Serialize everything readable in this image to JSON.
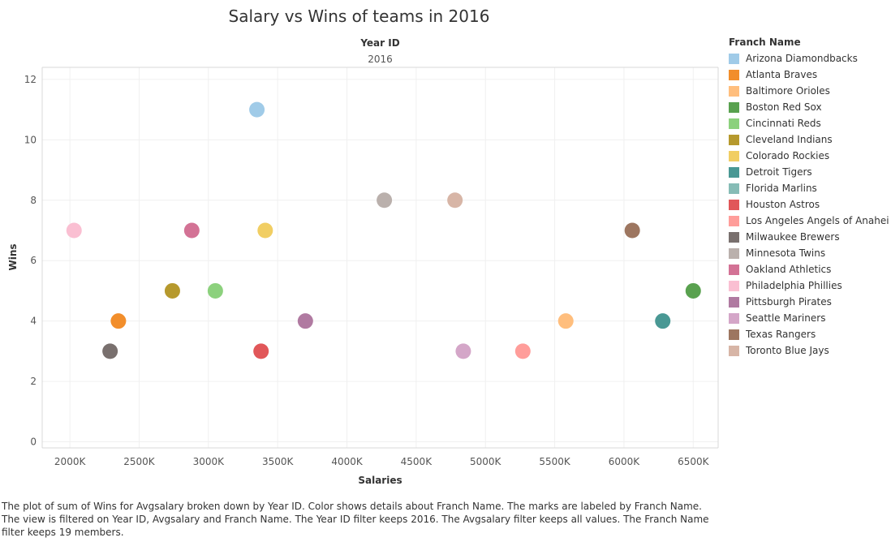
{
  "chart_data": {
    "type": "scatter",
    "title": "Salary vs Wins of teams in 2016",
    "header_field": "Year ID",
    "header_value": "2016",
    "xlabel": "Salaries",
    "ylabel": "Wins",
    "xlim": [
      1800,
      6680
    ],
    "ylim": [
      -0.2,
      12.4
    ],
    "xticks": [
      2000,
      2500,
      3000,
      3500,
      4000,
      4500,
      5000,
      5500,
      6000,
      6500
    ],
    "xtick_labels": [
      "2000K",
      "2500K",
      "3000K",
      "3500K",
      "4000K",
      "4500K",
      "5000K",
      "5500K",
      "6000K",
      "6500K"
    ],
    "yticks": [
      0,
      2,
      4,
      6,
      8,
      10,
      12
    ],
    "ytick_labels": [
      "0",
      "2",
      "4",
      "6",
      "8",
      "10",
      "12"
    ],
    "grid": true,
    "legend_title": "Franch Name",
    "legend_position": "right",
    "series": [
      {
        "name": "Arizona Diamondbacks",
        "color": "#a0cbe8",
        "x": 3350,
        "y": 11
      },
      {
        "name": "Atlanta Braves",
        "color": "#f28e2b",
        "x": 2350,
        "y": 4
      },
      {
        "name": "Baltimore Orioles",
        "color": "#ffbe7d",
        "x": 5580,
        "y": 4
      },
      {
        "name": "Boston Red Sox",
        "color": "#59a14f",
        "x": 6500,
        "y": 5
      },
      {
        "name": "Cincinnati Reds",
        "color": "#8cd17d",
        "x": 3050,
        "y": 5
      },
      {
        "name": "Cleveland Indians",
        "color": "#b6992d",
        "x": 2740,
        "y": 5
      },
      {
        "name": "Colorado Rockies",
        "color": "#f1ce63",
        "x": 3410,
        "y": 7
      },
      {
        "name": "Detroit Tigers",
        "color": "#499894",
        "x": 6280,
        "y": 4
      },
      {
        "name": "Florida Marlins",
        "color": "#86bcb6",
        "x": null,
        "y": null
      },
      {
        "name": "Houston Astros",
        "color": "#e15759",
        "x": 3380,
        "y": 3
      },
      {
        "name": "Los Angeles Angels of Anaheim",
        "color": "#ff9d9a",
        "x": 5270,
        "y": 3
      },
      {
        "name": "Milwaukee Brewers",
        "color": "#79706e",
        "x": 2290,
        "y": 3
      },
      {
        "name": "Minnesota Twins",
        "color": "#bab0ac",
        "x": 4270,
        "y": 8
      },
      {
        "name": "Oakland Athletics",
        "color": "#d37295",
        "x": 2880,
        "y": 7
      },
      {
        "name": "Philadelphia Phillies",
        "color": "#fabfd2",
        "x": 2030,
        "y": 7
      },
      {
        "name": "Pittsburgh Pirates",
        "color": "#b07aa1",
        "x": 3700,
        "y": 4
      },
      {
        "name": "Seattle Mariners",
        "color": "#d4a6c8",
        "x": 4840,
        "y": 3
      },
      {
        "name": "Texas Rangers",
        "color": "#9d7660",
        "x": 6060,
        "y": 7
      },
      {
        "name": "Toronto Blue Jays",
        "color": "#d7b5a6",
        "x": 4780,
        "y": 8
      }
    ]
  },
  "caption": "The plot of sum of Wins for Avgsalary broken down by Year ID.  Color shows details about Franch Name.  The marks are labeled by Franch Name. The view is filtered on Year ID, Avgsalary and Franch Name. The Year ID filter keeps 2016. The Avgsalary filter keeps all values. The Franch Name filter keeps 19 members."
}
